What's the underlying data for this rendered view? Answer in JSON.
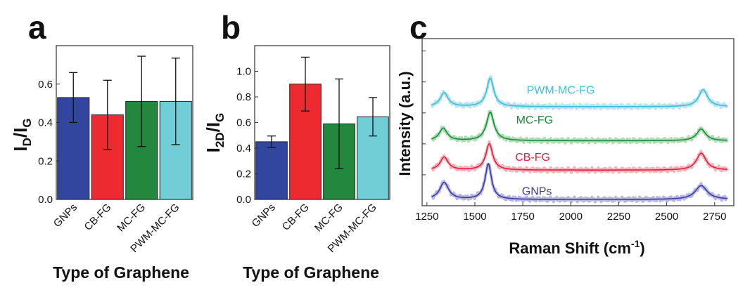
{
  "figure": {
    "panels": [
      "a",
      "b",
      "c"
    ]
  },
  "chart_data": [
    {
      "id": "a",
      "type": "bar",
      "title": "",
      "ylabel_main": "I",
      "ylabel_sub1": "D",
      "ylabel_mid": "/I",
      "ylabel_sub2": "G",
      "xlabel": "Type of Graphene",
      "categories": [
        "GNPs",
        "CB-FG",
        "MC-FG",
        "PWM-MC-FG"
      ],
      "values": [
        0.53,
        0.44,
        0.51,
        0.51
      ],
      "errors": [
        0.13,
        0.18,
        0.235,
        0.225
      ],
      "colors": [
        "#3246a0",
        "#ee2a31",
        "#23883d",
        "#71cdd6"
      ],
      "ylim": [
        0.0,
        0.8
      ],
      "yticks": [
        "0.0",
        "0.2",
        "0.4",
        "0.6"
      ],
      "ytick_values": [
        0.0,
        0.2,
        0.4,
        0.6
      ]
    },
    {
      "id": "b",
      "type": "bar",
      "title": "",
      "ylabel_main": "I",
      "ylabel_sub1": "2D",
      "ylabel_mid": "/I",
      "ylabel_sub2": "G",
      "xlabel": "Type of Graphene",
      "categories": [
        "GNPs",
        "CB-FG",
        "MC-FG",
        "PWM-MC-FG"
      ],
      "values": [
        0.45,
        0.9,
        0.59,
        0.645
      ],
      "errors": [
        0.045,
        0.21,
        0.35,
        0.15
      ],
      "colors": [
        "#3246a0",
        "#ee2a31",
        "#23883d",
        "#71cdd6"
      ],
      "ylim": [
        0.0,
        1.2
      ],
      "yticks": [
        "0.0",
        "0.2",
        "0.4",
        "0.6",
        "0.8",
        "1.0"
      ],
      "ytick_values": [
        0.0,
        0.2,
        0.4,
        0.6,
        0.8,
        1.0
      ]
    },
    {
      "id": "c",
      "type": "line",
      "title": "",
      "xlabel_main": "Raman Shift (cm",
      "xlabel_sup": "-1",
      "xlabel_end": ")",
      "ylabel": "Intensity (a.u.)",
      "xlim": [
        1225,
        2850
      ],
      "ylim": [
        0,
        5.4
      ],
      "xticks": [
        "1250",
        "1500",
        "1750",
        "2000",
        "2250",
        "2500",
        "2750"
      ],
      "xtick_values": [
        1250,
        1500,
        1750,
        2000,
        2250,
        2500,
        2750
      ],
      "series": [
        {
          "name": "GNPs",
          "color": "#3b3ba6",
          "light": "#a9a9dc",
          "offset": 0.2,
          "peaks": [
            {
              "center": 1340,
              "height": 0.55,
              "width": 28
            },
            {
              "center": 1570,
              "height": 1.15,
              "width": 20
            },
            {
              "center": 2680,
              "height": 0.45,
              "width": 38
            }
          ]
        },
        {
          "name": "CB-FG",
          "color": "#e0203d",
          "light": "#f3a5b2",
          "offset": 1.15,
          "peaks": [
            {
              "center": 1340,
              "height": 0.42,
              "width": 25
            },
            {
              "center": 1575,
              "height": 0.85,
              "width": 22
            },
            {
              "center": 2680,
              "height": 0.55,
              "width": 30
            }
          ]
        },
        {
          "name": "MC-FG",
          "color": "#1f8a3c",
          "light": "#9fd7a8",
          "offset": 2.1,
          "peaks": [
            {
              "center": 1335,
              "height": 0.4,
              "width": 25
            },
            {
              "center": 1580,
              "height": 0.92,
              "width": 24
            },
            {
              "center": 2680,
              "height": 0.38,
              "width": 28
            }
          ]
        },
        {
          "name": "PWM-MC-FG",
          "color": "#42bdd7",
          "light": "#a8e1ec",
          "offset": 3.2,
          "peaks": [
            {
              "center": 1340,
              "height": 0.45,
              "width": 25
            },
            {
              "center": 1580,
              "height": 0.92,
              "width": 22
            },
            {
              "center": 2690,
              "height": 0.55,
              "width": 28
            }
          ]
        }
      ]
    }
  ]
}
